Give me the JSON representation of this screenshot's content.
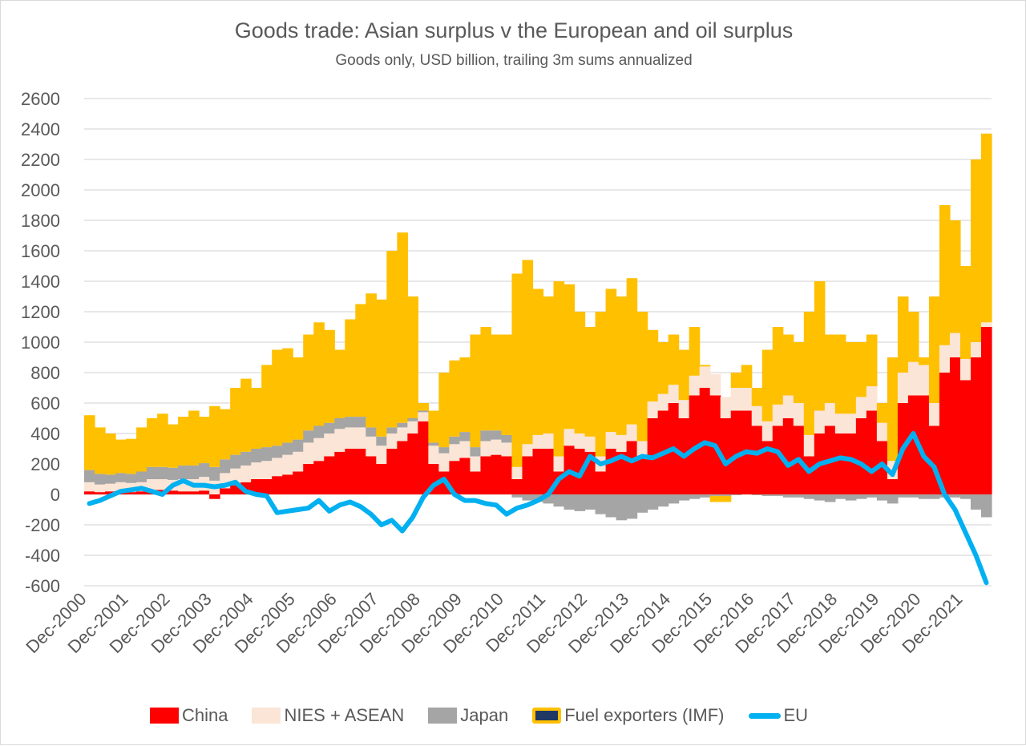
{
  "chart_data": {
    "type": "bar",
    "title": "Goods trade: Asian surplus v the European and oil surplus",
    "subtitle": "Goods only, USD billion, trailing 3m sums annualized",
    "xlabel": "",
    "ylabel": "",
    "ylim": [
      -600,
      2600
    ],
    "yticks": [
      "-600",
      "-400",
      "-200",
      "0",
      "200",
      "400",
      "600",
      "800",
      "1000",
      "1200",
      "1400",
      "1600",
      "1800",
      "2000",
      "2200",
      "2400",
      "2600"
    ],
    "grid": true,
    "legend_position": "bottom",
    "periods_note": "quarterly, starting Dec-2000 through Jun-2022",
    "xtick_labels": [
      "Dec-2000",
      "Dec-2001",
      "Dec-2002",
      "Dec-2003",
      "Dec-2004",
      "Dec-2005",
      "Dec-2006",
      "Dec-2007",
      "Dec-2008",
      "Dec-2009",
      "Dec-2010",
      "Dec-2011",
      "Dec-2012",
      "Dec-2013",
      "Dec-2014",
      "Dec-2015",
      "Dec-2016",
      "Dec-2017",
      "Dec-2018",
      "Dec-2019",
      "Dec-2020",
      "Dec-2021"
    ],
    "colors": {
      "China": "#ff0000",
      "NIES + ASEAN": "#fbe5d6",
      "Japan": "#a5a5a5",
      "Fuel exporters (IMF)": "#ffc000",
      "EU": "#00b0f0"
    },
    "series": [
      {
        "name": "China",
        "values": [
          20,
          15,
          20,
          20,
          15,
          20,
          30,
          30,
          25,
          20,
          20,
          25,
          -30,
          40,
          60,
          80,
          100,
          100,
          120,
          130,
          150,
          200,
          220,
          250,
          280,
          300,
          300,
          250,
          200,
          300,
          350,
          400,
          480,
          200,
          150,
          220,
          240,
          150,
          250,
          260,
          250,
          100,
          250,
          300,
          300,
          150,
          320,
          300,
          280,
          150,
          300,
          280,
          350,
          250,
          500,
          550,
          600,
          500,
          650,
          700,
          650,
          500,
          550,
          550,
          450,
          350,
          450,
          500,
          450,
          250,
          400,
          450,
          400,
          400,
          500,
          550,
          350,
          100,
          600,
          650,
          650,
          450,
          800,
          900,
          750,
          900,
          1100
        ]
      },
      {
        "name": "NIES + ASEAN",
        "values": [
          60,
          50,
          50,
          60,
          60,
          60,
          70,
          70,
          70,
          80,
          80,
          90,
          90,
          100,
          110,
          110,
          110,
          120,
          120,
          130,
          130,
          140,
          150,
          150,
          150,
          140,
          140,
          130,
          120,
          100,
          90,
          80,
          60,
          120,
          120,
          110,
          110,
          100,
          100,
          100,
          90,
          80,
          80,
          90,
          100,
          100,
          110,
          100,
          100,
          100,
          110,
          110,
          110,
          100,
          110,
          110,
          120,
          120,
          130,
          140,
          140,
          140,
          150,
          150,
          130,
          130,
          140,
          150,
          150,
          140,
          150,
          150,
          130,
          130,
          140,
          160,
          120,
          120,
          200,
          220,
          200,
          150,
          180,
          160,
          140,
          100,
          30
        ]
      },
      {
        "name": "Japan",
        "values": [
          80,
          70,
          60,
          60,
          60,
          70,
          80,
          80,
          80,
          90,
          90,
          90,
          90,
          90,
          90,
          90,
          90,
          90,
          80,
          80,
          80,
          80,
          80,
          70,
          70,
          70,
          70,
          60,
          60,
          40,
          30,
          20,
          10,
          20,
          40,
          50,
          60,
          60,
          70,
          60,
          50,
          -20,
          -40,
          -50,
          -60,
          -80,
          -100,
          -110,
          -100,
          -130,
          -150,
          -170,
          -160,
          -120,
          -100,
          -80,
          -60,
          -40,
          -30,
          -20,
          -10,
          -10,
          -5,
          0,
          -5,
          -10,
          -10,
          -20,
          -20,
          -30,
          -40,
          -50,
          -30,
          -40,
          -30,
          -20,
          -40,
          -60,
          -20,
          -20,
          -30,
          -30,
          -20,
          -20,
          -30,
          -100,
          -150
        ]
      },
      {
        "name": "Fuel exporters (IMF)",
        "values": [
          360,
          305,
          270,
          220,
          230,
          290,
          320,
          350,
          285,
          320,
          360,
          305,
          400,
          330,
          440,
          480,
          400,
          540,
          630,
          620,
          540,
          630,
          680,
          610,
          450,
          640,
          740,
          880,
          900,
          1160,
          1250,
          800,
          50,
          210,
          490,
          500,
          490,
          740,
          680,
          630,
          660,
          1270,
          1210,
          960,
          900,
          1150,
          950,
          800,
          720,
          950,
          940,
          910,
          960,
          850,
          470,
          340,
          330,
          330,
          320,
          10,
          -40,
          -40,
          100,
          150,
          120,
          470,
          510,
          400,
          400,
          810,
          850,
          450,
          520,
          470,
          360,
          340,
          130,
          680,
          500,
          330,
          50,
          700,
          920,
          740,
          610,
          1200,
          1240
        ]
      },
      {
        "name": "EU",
        "values": [
          -60,
          -40,
          -10,
          20,
          30,
          40,
          20,
          0,
          60,
          90,
          60,
          60,
          50,
          60,
          80,
          20,
          0,
          -10,
          -120,
          -110,
          -100,
          -90,
          -40,
          -110,
          -70,
          -50,
          -80,
          -130,
          -200,
          -170,
          -240,
          -150,
          -20,
          60,
          100,
          0,
          -40,
          -40,
          -60,
          -70,
          -130,
          -90,
          -70,
          -40,
          0,
          100,
          150,
          120,
          250,
          200,
          220,
          250,
          220,
          250,
          240,
          270,
          300,
          250,
          300,
          340,
          320,
          200,
          250,
          280,
          270,
          300,
          280,
          190,
          230,
          150,
          200,
          220,
          240,
          230,
          200,
          150,
          200,
          130,
          300,
          400,
          250,
          180,
          0,
          -100,
          -250,
          -400,
          -580
        ]
      }
    ]
  },
  "legend": [
    "China",
    "NIES + ASEAN",
    "Japan",
    "Fuel exporters (IMF)",
    "EU"
  ]
}
